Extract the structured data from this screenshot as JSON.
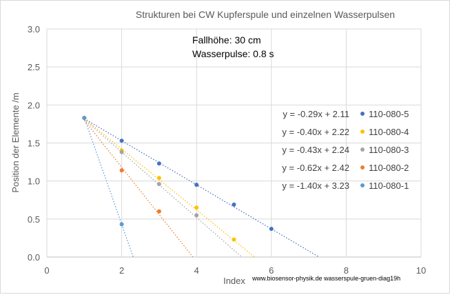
{
  "chart_data": {
    "type": "scatter",
    "title": "Strukturen bei CW Kupferspule und einzelnen Wasserpulsen",
    "xlabel": "Index",
    "ylabel": "Position der Elemente /m",
    "xlim": [
      0,
      10
    ],
    "ylim": [
      0,
      3
    ],
    "x_ticks": [
      "0",
      "2",
      "4",
      "6",
      "8",
      "10"
    ],
    "y_ticks": [
      "0.0",
      "0.5",
      "1.0",
      "1.5",
      "2.0",
      "2.5",
      "3.0"
    ],
    "grid": true,
    "legend_position": "right",
    "annotations": [
      "Fallhöhe: 30 cm",
      "Wasserpulse: 0.8 s"
    ],
    "footer": "www.biosensor-physik.de  wasserspule-gruen-diag19h",
    "series": [
      {
        "name": "110-080-5",
        "color": "#4472c4",
        "points": [
          [
            1,
            1.83
          ],
          [
            2,
            1.53
          ],
          [
            3,
            1.23
          ],
          [
            4,
            0.95
          ],
          [
            5,
            0.69
          ],
          [
            6,
            0.37
          ]
        ],
        "trendline": {
          "label": "y = -0.29x + 2.11",
          "slope": -0.29,
          "intercept": 2.11
        }
      },
      {
        "name": "110-080-4",
        "color": "#ffc000",
        "points": [
          [
            1,
            1.83
          ],
          [
            2,
            1.4
          ],
          [
            3,
            1.04
          ],
          [
            4,
            0.65
          ],
          [
            5,
            0.23
          ]
        ],
        "trendline": {
          "label": "y = -0.40x + 2.22",
          "slope": -0.4,
          "intercept": 2.22
        }
      },
      {
        "name": "110-080-3",
        "color": "#a5a5a5",
        "points": [
          [
            1,
            1.83
          ],
          [
            2,
            1.38
          ],
          [
            3,
            0.96
          ],
          [
            4,
            0.55
          ]
        ],
        "trendline": {
          "label": "y = -0.43x + 2.24",
          "slope": -0.43,
          "intercept": 2.24
        }
      },
      {
        "name": "110-080-2",
        "color": "#ed7d31",
        "points": [
          [
            1,
            1.83
          ],
          [
            2,
            1.14
          ],
          [
            3,
            0.6
          ]
        ],
        "trendline": {
          "label": "y = -0.62x + 2.42",
          "slope": -0.62,
          "intercept": 2.42
        }
      },
      {
        "name": "110-080-1",
        "color": "#5b9bd5",
        "points": [
          [
            1,
            1.83
          ],
          [
            2,
            0.43
          ]
        ],
        "trendline": {
          "label": "y = -1.40x + 3.23",
          "slope": -1.4,
          "intercept": 3.23
        }
      }
    ]
  }
}
